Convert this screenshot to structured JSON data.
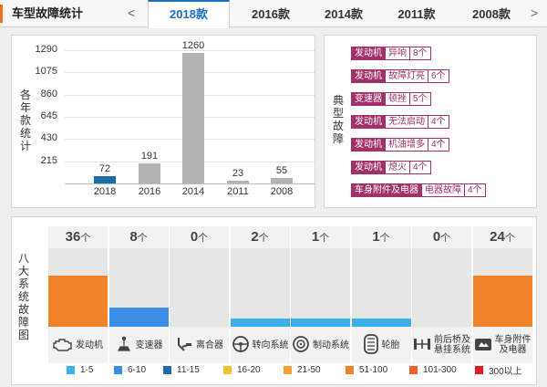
{
  "header": {
    "title": "车型故障统计",
    "prev_arrow": "<",
    "next_arrow": ">",
    "tabs": [
      {
        "label": "2018款",
        "active": true
      },
      {
        "label": "2016款",
        "active": false
      },
      {
        "label": "2014款",
        "active": false
      },
      {
        "label": "2011款",
        "active": false
      },
      {
        "label": "2008款",
        "active": false
      }
    ]
  },
  "yearly": {
    "ylabel": "各年款统计",
    "chart_data": {
      "type": "bar",
      "categories": [
        "2018",
        "2016",
        "2014",
        "2011",
        "2008"
      ],
      "values": [
        72,
        191,
        1260,
        23,
        55
      ],
      "highlight": "2018",
      "bar_color": "#b3b3b3",
      "highlight_color": "#1b6cab",
      "yticks": [
        "1290",
        "1075",
        "860",
        "645",
        "430",
        "215"
      ],
      "ylim": [
        0,
        1290
      ],
      "ylabel": "各年款统计"
    }
  },
  "issues": {
    "label": "典型故障",
    "items": [
      {
        "system": "发动机",
        "name": "异响",
        "count": "8个"
      },
      {
        "system": "发动机",
        "name": "故障灯亮",
        "count": "6个"
      },
      {
        "system": "变速器",
        "name": "顿挫",
        "count": "5个"
      },
      {
        "system": "发动机",
        "name": "无法启动",
        "count": "4个"
      },
      {
        "system": "发动机",
        "name": "机油增多",
        "count": "4个"
      },
      {
        "system": "发动机",
        "name": "熄火",
        "count": "4个"
      },
      {
        "system": "车身附件及电器",
        "name": "电器故障",
        "count": "4个"
      }
    ]
  },
  "systems": {
    "label": "八大系统故障图",
    "unit": "个",
    "items": [
      {
        "count": "36",
        "name": "发动机",
        "icon": "engine-icon",
        "level": 0.65,
        "color": "#f0832a"
      },
      {
        "count": "8",
        "name": "变速器",
        "icon": "gearshift-icon",
        "level": 0.24,
        "color": "#3b8ee5"
      },
      {
        "count": "0",
        "name": "离合器",
        "icon": "clutch-pedal-icon",
        "level": 0,
        "color": "#3bb0ea"
      },
      {
        "count": "2",
        "name": "转向系统",
        "icon": "steering-wheel-icon",
        "level": 0.11,
        "color": "#3bb0ea"
      },
      {
        "count": "1",
        "name": "制动系统",
        "icon": "brake-disc-icon",
        "level": 0.11,
        "color": "#3bb0ea"
      },
      {
        "count": "1",
        "name": "轮胎",
        "icon": "tire-icon",
        "level": 0.11,
        "color": "#3bb0ea"
      },
      {
        "count": "0",
        "name": "前后桥及悬挂系统",
        "name_lines": [
          "前后桥及",
          "悬挂系统"
        ],
        "icon": "axle-icon",
        "level": 0,
        "color": "#3bb0ea"
      },
      {
        "count": "24",
        "name": "车身附件及电器",
        "name_lines": [
          "车身附件",
          "及电器"
        ],
        "icon": "car-body-icon",
        "level": 0.65,
        "color": "#f0832a"
      }
    ]
  },
  "legend": [
    {
      "label": "1-5",
      "color": "#3bb0ea"
    },
    {
      "label": "6-10",
      "color": "#3b8ee5"
    },
    {
      "label": "11-15",
      "color": "#1b6cab"
    },
    {
      "label": "16-20",
      "color": "#f2c12e"
    },
    {
      "label": "21-50",
      "color": "#f0a030"
    },
    {
      "label": "51-100",
      "color": "#f0832a"
    },
    {
      "label": "101-300",
      "color": "#e9622a"
    },
    {
      "label": "300以上",
      "color": "#e02020"
    }
  ]
}
